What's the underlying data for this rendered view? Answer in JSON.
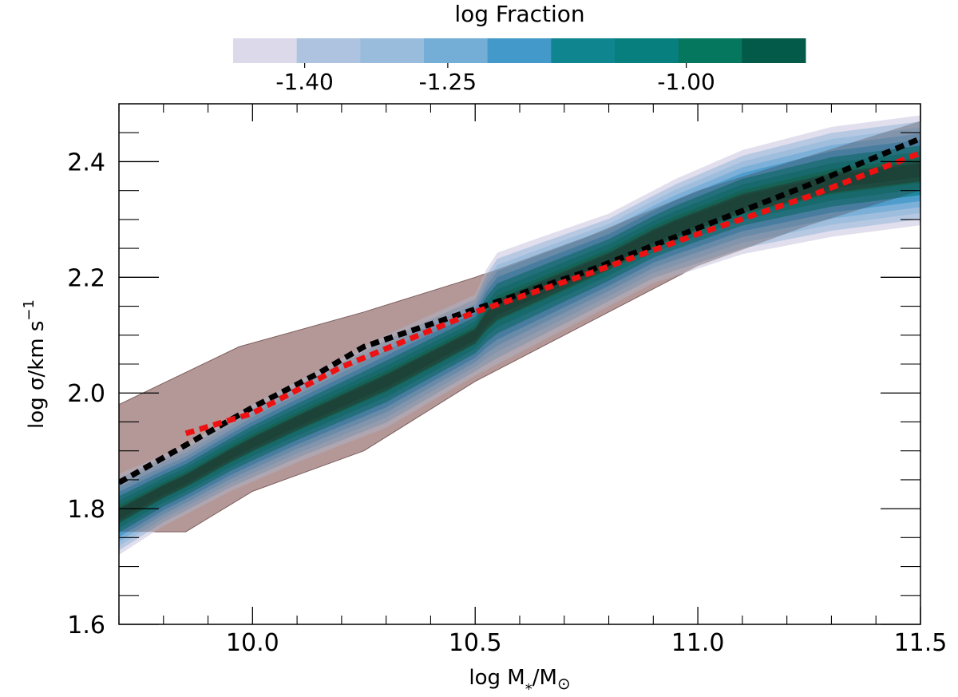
{
  "chart_data": {
    "type": "area",
    "xlabel": "log M",
    "xlabel_sub": "*",
    "xlabel_tail": "/M",
    "xlabel_sym": "⊙",
    "ylabel": "log σ/km s",
    "ylabel_sup": "−1",
    "xlim": [
      9.7,
      11.5
    ],
    "ylim": [
      1.6,
      2.5
    ],
    "xticks": [
      10.0,
      10.5,
      11.0,
      11.5
    ],
    "xtick_labels": [
      "10.0",
      "10.5",
      "11.0",
      "11.5"
    ],
    "yticks": [
      1.6,
      1.8,
      2.0,
      2.2,
      2.4
    ],
    "ytick_labels": [
      "1.6",
      "1.8",
      "2.0",
      "2.2",
      "2.4"
    ],
    "grid": false,
    "colorbar": {
      "title": "log Fraction",
      "range": [
        -1.475,
        -0.875
      ],
      "ticks": [
        -1.4,
        -1.25,
        -1.0
      ],
      "tick_labels": [
        "-1.40",
        "-1.25",
        "-1.00"
      ],
      "colors": [
        "#dcd9ea",
        "#adc3df",
        "#99bcdd",
        "#74add6",
        "#4399c9",
        "#0f8590",
        "#077f7e",
        "#06775f",
        "#045a48"
      ]
    },
    "series": [
      {
        "style": "band",
        "color": "#c07878",
        "upper": [
          [
            9.7,
            1.98
          ],
          [
            9.97,
            2.08
          ],
          [
            10.25,
            2.14
          ],
          [
            10.5,
            2.2
          ],
          [
            10.75,
            2.27
          ],
          [
            11.0,
            2.35
          ],
          [
            11.25,
            2.41
          ],
          [
            11.5,
            2.47
          ]
        ],
        "lower": [
          [
            9.85,
            1.76
          ],
          [
            10.0,
            1.83
          ],
          [
            10.25,
            1.9
          ],
          [
            10.5,
            2.02
          ],
          [
            10.75,
            2.12
          ],
          [
            11.0,
            2.22
          ],
          [
            11.25,
            2.29
          ],
          [
            11.5,
            2.35
          ]
        ]
      },
      {
        "style": "density",
        "upper": [
          [
            9.7,
            1.86
          ],
          [
            9.85,
            1.91
          ],
          [
            10.0,
            1.98
          ],
          [
            10.15,
            2.04
          ],
          [
            10.3,
            2.1
          ],
          [
            10.5,
            2.17
          ],
          [
            10.54,
            2.24
          ],
          [
            10.65,
            2.27
          ],
          [
            10.8,
            2.31
          ],
          [
            10.95,
            2.37
          ],
          [
            11.1,
            2.42
          ],
          [
            11.3,
            2.46
          ],
          [
            11.5,
            2.48
          ]
        ],
        "lower": [
          [
            9.7,
            1.72
          ],
          [
            9.8,
            1.77
          ],
          [
            9.95,
            1.83
          ],
          [
            10.1,
            1.88
          ],
          [
            10.3,
            1.94
          ],
          [
            10.5,
            2.03
          ],
          [
            10.7,
            2.11
          ],
          [
            10.9,
            2.19
          ],
          [
            11.1,
            2.24
          ],
          [
            11.3,
            2.27
          ],
          [
            11.5,
            2.29
          ]
        ]
      },
      {
        "style": "dotted",
        "color": "#000000",
        "points": [
          [
            9.7,
            1.845
          ],
          [
            9.85,
            1.91
          ],
          [
            10.0,
            1.975
          ],
          [
            10.15,
            2.035
          ],
          [
            10.25,
            2.08
          ],
          [
            10.5,
            2.145
          ],
          [
            10.75,
            2.21
          ],
          [
            11.0,
            2.285
          ],
          [
            11.25,
            2.36
          ],
          [
            11.5,
            2.44
          ]
        ]
      },
      {
        "style": "dotted",
        "color": "#ee1111",
        "points": [
          [
            9.85,
            1.93
          ],
          [
            10.0,
            1.965
          ],
          [
            10.2,
            2.045
          ],
          [
            10.5,
            2.14
          ],
          [
            10.75,
            2.205
          ],
          [
            11.0,
            2.275
          ],
          [
            11.25,
            2.34
          ],
          [
            11.5,
            2.415
          ]
        ]
      }
    ]
  }
}
